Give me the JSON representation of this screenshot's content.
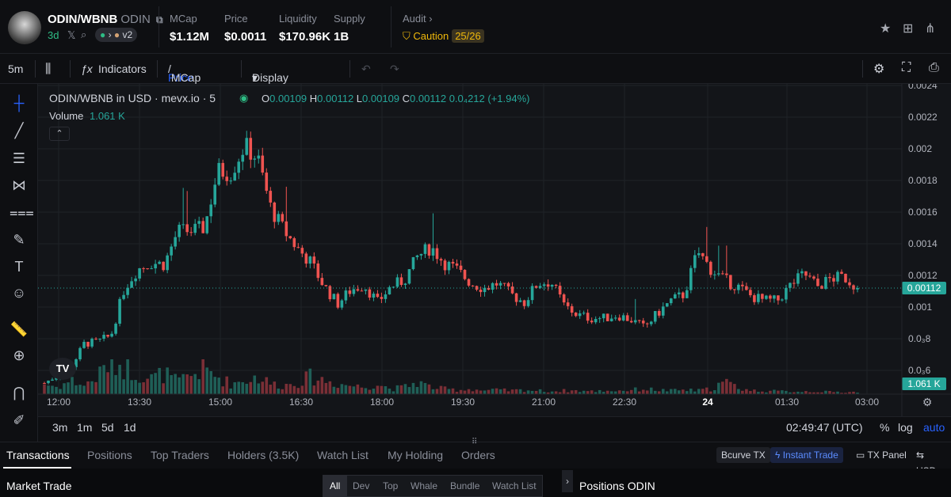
{
  "header": {
    "pair": "ODIN/WBNB",
    "symbol": "ODIN",
    "age": "3d",
    "version": "v2",
    "stats": [
      {
        "label": "MCap",
        "value": "$1.12M"
      },
      {
        "label": "Price",
        "value": "$0.0011"
      },
      {
        "label": "Liquidity",
        "value": "$170.96K"
      },
      {
        "label": "Supply",
        "value": "1B"
      }
    ],
    "audit_label": "Audit",
    "caution_label": "Caution",
    "caution_score": "25/26"
  },
  "toolbar": {
    "interval": "5m",
    "indicators": "Indicators",
    "price": "Price",
    "mcap": "MCap",
    "display_options": "Display Options"
  },
  "legend": {
    "title": "ODIN/WBNB in USD · mevx.io · 5",
    "o_label": "O",
    "o": "0.00109",
    "h_label": "H",
    "h": "0.00112",
    "l_label": "L",
    "l": "0.00109",
    "c_label": "C",
    "c": "0.00112",
    "change": "0.0₄212 (+1.94%)",
    "volume_label": "Volume",
    "volume": "1.061 K"
  },
  "chart_data": {
    "type": "candlestick",
    "price_axis": [
      "0.0024",
      "0.0022",
      "0.002",
      "0.0018",
      "0.0016",
      "0.0014",
      "0.0012",
      "0.001",
      "0.0₃8",
      "0.0₃6"
    ],
    "time_axis": [
      "12:00",
      "13:30",
      "15:00",
      "16:30",
      "18:00",
      "19:30",
      "21:00",
      "22:30",
      "24",
      "01:30",
      "03:00"
    ],
    "current_price": "0.00112",
    "current_volume": "1.061 K",
    "ylim": [
      0.00045,
      0.00241
    ],
    "close_path": [
      0.00052,
      0.00057,
      0.00062,
      0.00077,
      0.00078,
      0.00082,
      0.00112,
      0.00124,
      0.00128,
      0.00127,
      0.00148,
      0.00148,
      0.0015,
      0.00186,
      0.00185,
      0.00202,
      0.00194,
      0.00162,
      0.00148,
      0.00137,
      0.00128,
      0.00113,
      0.00102,
      0.00111,
      0.00114,
      0.00103,
      0.00113,
      0.00117,
      0.00132,
      0.00138,
      0.00128,
      0.00123,
      0.00115,
      0.00112,
      0.00115,
      0.00108,
      0.00103,
      0.00115,
      0.00116,
      0.00101,
      0.00095,
      0.00093,
      0.00093,
      0.00095,
      0.00092,
      0.00087,
      0.00096,
      0.00104,
      0.00108,
      0.00135,
      0.00124,
      0.00117,
      0.00113,
      0.00107,
      0.00104,
      0.00104,
      0.00114,
      0.00121,
      0.00113,
      0.00118,
      0.00119,
      0.00112
    ],
    "volume_path": [
      0.3,
      0.2,
      0.4,
      0.25,
      0.5,
      1.0,
      0.8,
      0.6,
      0.45,
      0.6,
      0.35,
      0.55,
      0.7,
      0.5,
      0.3,
      0.4,
      0.5,
      0.3,
      0.25,
      0.35,
      0.5,
      0.4,
      0.3,
      0.25,
      0.2,
      0.3,
      0.15,
      0.2,
      0.35,
      0.2,
      0.15,
      0.12,
      0.15,
      0.1,
      0.12,
      0.1,
      0.12,
      0.1,
      0.08,
      0.1,
      0.1,
      0.08,
      0.1,
      0.1,
      0.12,
      0.15,
      0.12,
      0.1,
      0.12,
      0.1,
      0.15,
      0.35,
      0.2,
      0.1,
      0.1,
      0.08,
      0.08,
      0.08,
      0.08,
      0.06,
      0.06,
      0.06
    ],
    "bottom_left_timeframes": [
      "3m",
      "1m",
      "5d",
      "1d"
    ],
    "clock": "02:49:47 (UTC)",
    "percent_label": "%",
    "log_label": "log",
    "auto_label": "auto"
  },
  "tabs": [
    "Transactions",
    "Positions",
    "Top Traders",
    "Holders (3.5K)",
    "Watch List",
    "My Holding",
    "Orders"
  ],
  "right_chips": {
    "bcurve": "Bcurve TX",
    "instant": "Instant Trade",
    "txpanel": "TX Panel",
    "usd": "USD"
  },
  "bottom": {
    "market_trade": "Market Trade",
    "filters": [
      "All",
      "Dev",
      "Top",
      "Whale",
      "Bundle",
      "Watch List"
    ],
    "positions_title": "Positions ODIN"
  },
  "colors": {
    "up": "#26a69a",
    "down": "#ef5350",
    "accent": "#2962ff",
    "caution": "#f0b90b"
  }
}
